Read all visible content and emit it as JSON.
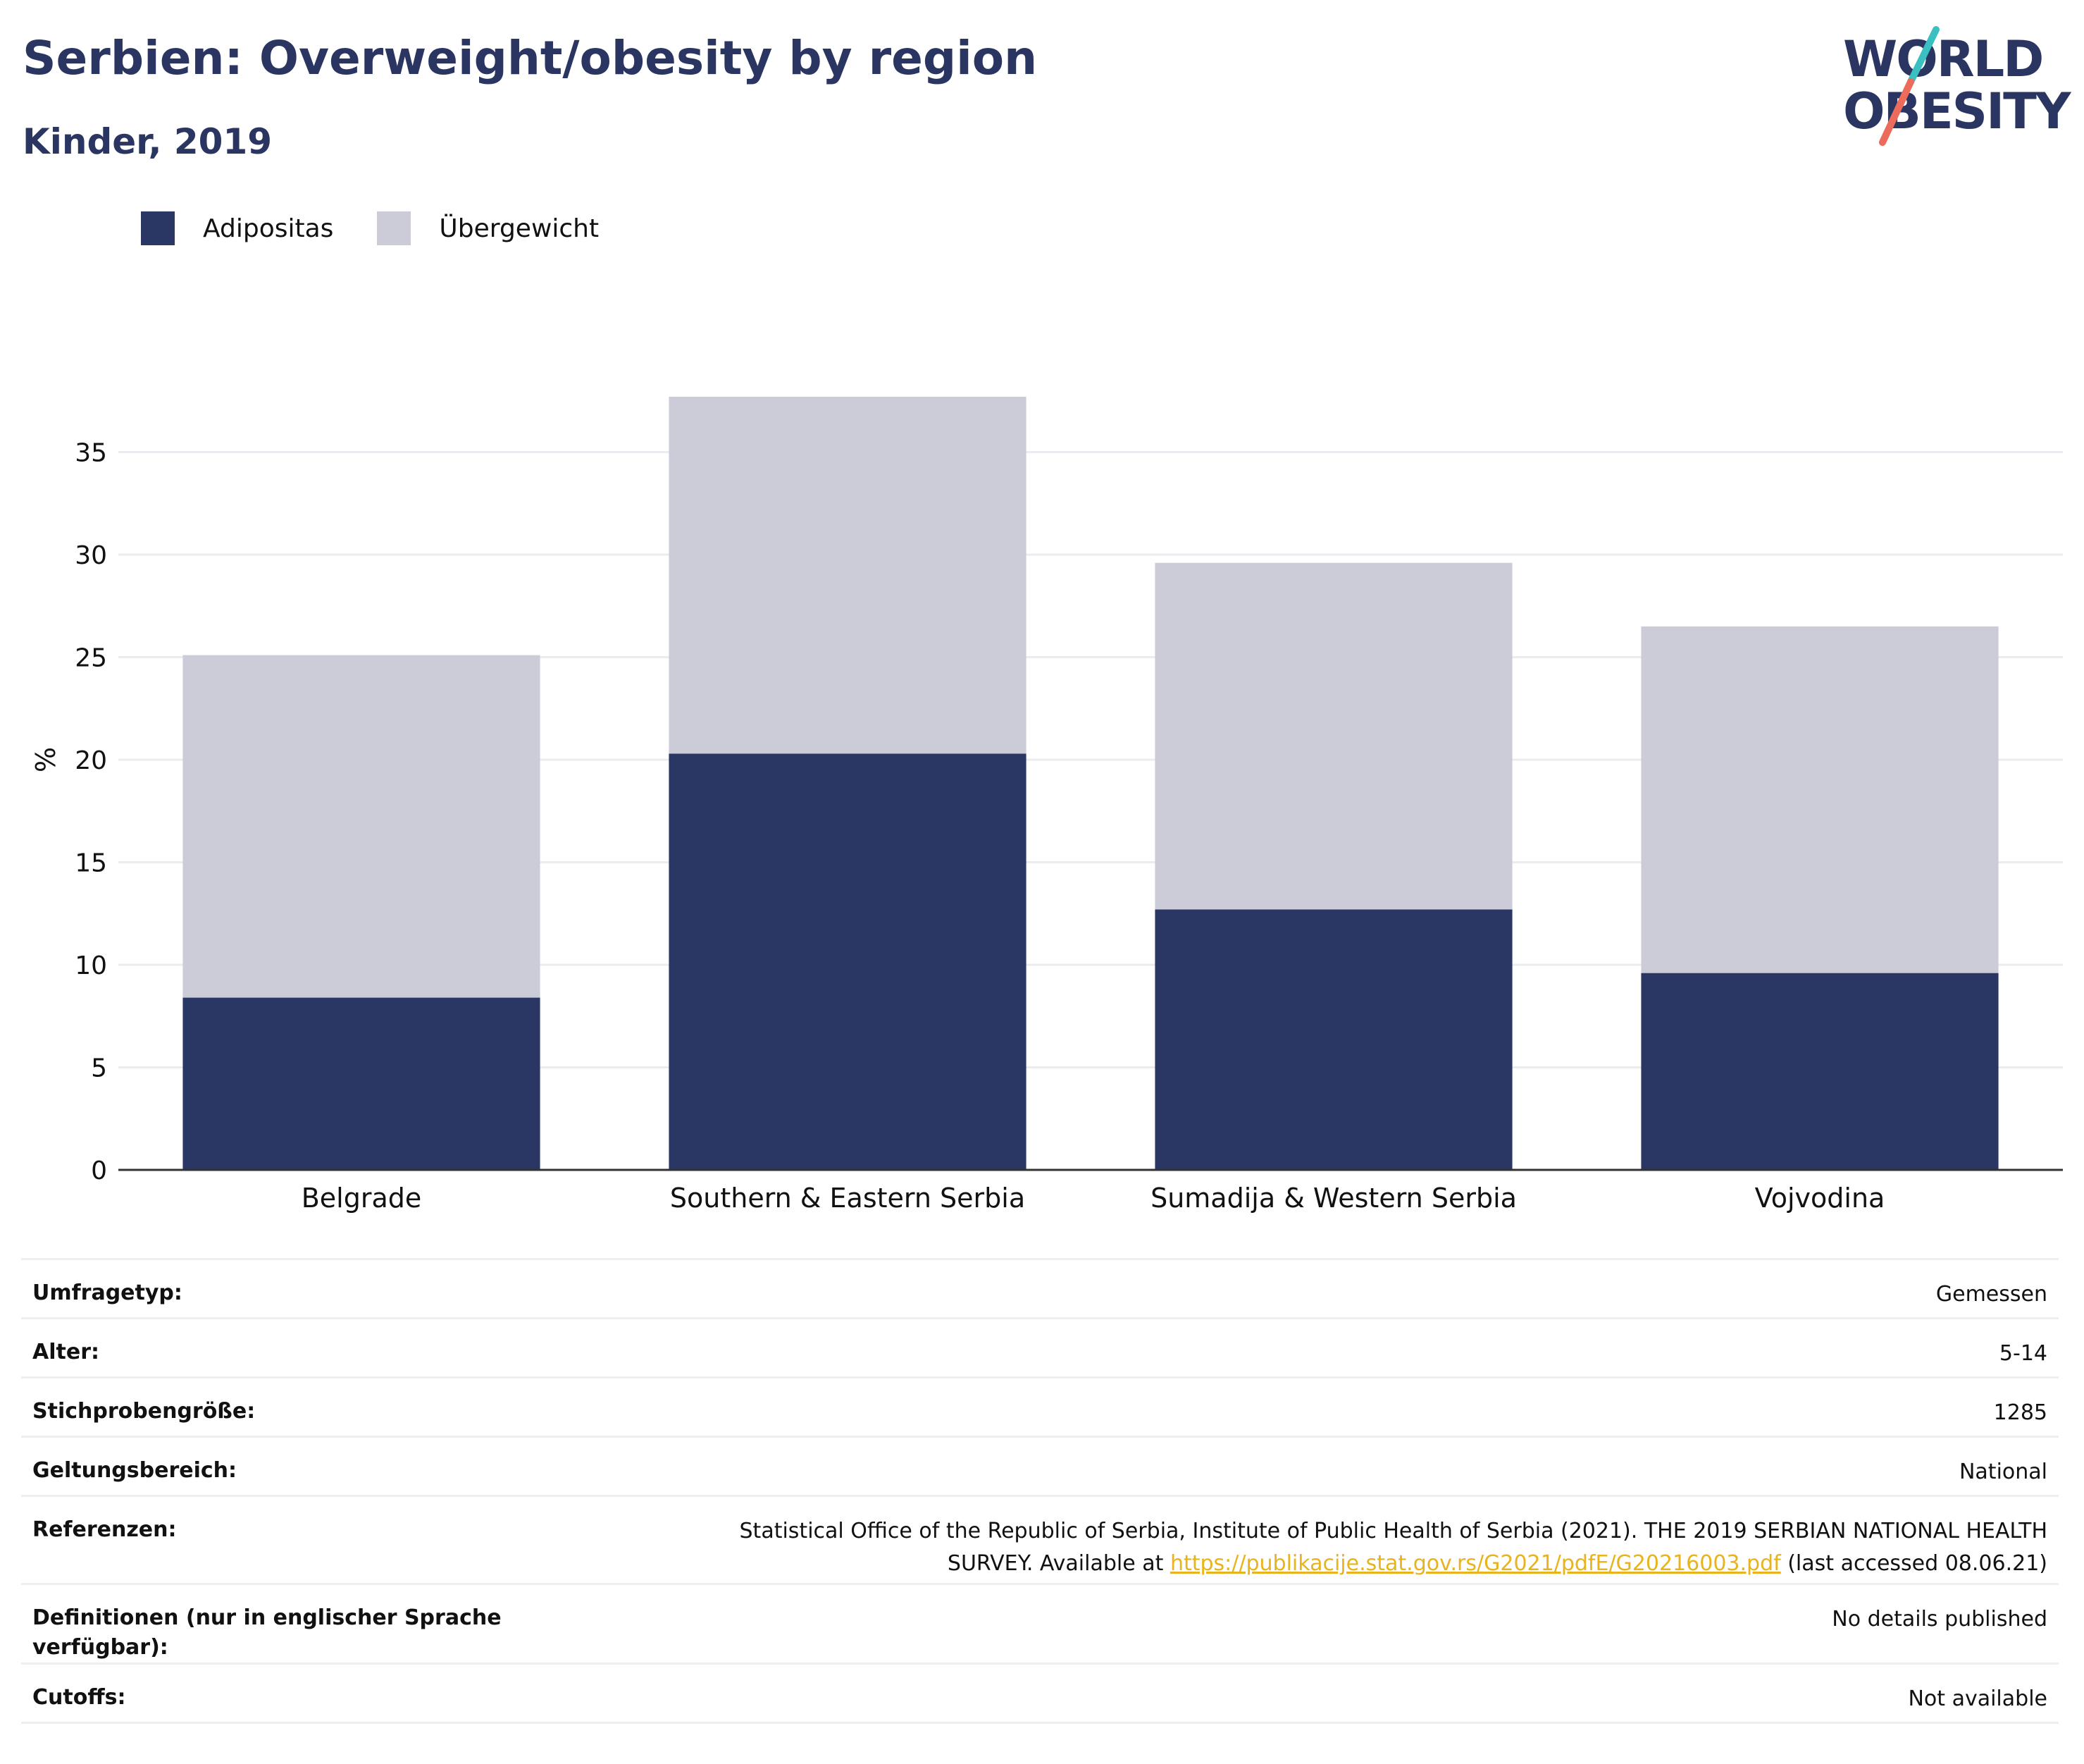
{
  "header": {
    "title": "Serbien: Overweight/obesity by region",
    "subtitle": "Kinder, 2019"
  },
  "logo": {
    "line1": "WORLD",
    "line2": "OBESITY"
  },
  "colors": {
    "obesity": "#2a3663",
    "overweight": "#cbccd8",
    "title": "#2a3561",
    "link": "#e8b31c",
    "logo_teal": "#3bbfc0",
    "logo_coral": "#ec6b5a"
  },
  "chart_data": {
    "type": "bar",
    "stacked": true,
    "categories": [
      "Belgrade",
      "Southern & Eastern Serbia",
      "Sumadija & Western Serbia",
      "Vojvodina"
    ],
    "series": [
      {
        "name": "Adipositas",
        "color": "#2a3663",
        "values": [
          8.4,
          20.3,
          12.7,
          9.6
        ]
      },
      {
        "name": "Übergewicht",
        "color": "#cbccd8",
        "values": [
          16.7,
          17.4,
          16.9,
          16.9
        ]
      }
    ],
    "ylabel": "%",
    "xlabel": "",
    "yticks": [
      0,
      5,
      10,
      15,
      20,
      25,
      30,
      35
    ],
    "ylim": [
      0,
      40
    ],
    "grid": true,
    "legend": "top-left"
  },
  "meta": {
    "survey_type": {
      "label": "Umfragetyp:",
      "value": "Gemessen"
    },
    "age": {
      "label": "Alter:",
      "value": "5-14"
    },
    "sample_size": {
      "label": "Stichprobengröße:",
      "value": "1285"
    },
    "scope": {
      "label": "Geltungsbereich:",
      "value": "National"
    },
    "references": {
      "label": "Referenzen:",
      "line1": "Statistical Office of the Republic of Serbia, Institute of Public Health of Serbia (2021). THE 2019 SERBIAN NATIONAL HEALTH",
      "prefix": "SURVEY. Available at",
      "link": "https://publikacije.stat.gov.rs/G2021/pdfE/G20216003.pdf",
      "suffix": "(last accessed 08.06.21)"
    },
    "definitions": {
      "label": "Definitionen (nur in englischer Sprache verfügbar):",
      "value": "No details published"
    },
    "cutoffs": {
      "label": "Cutoffs:",
      "value": "Not available"
    }
  }
}
